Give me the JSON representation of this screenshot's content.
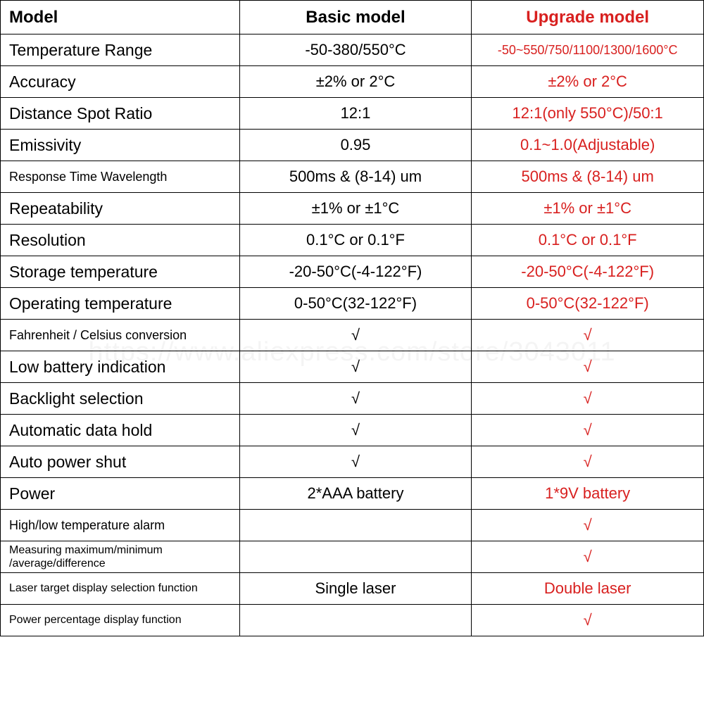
{
  "colors": {
    "border": "#000000",
    "text_black": "#000000",
    "text_red": "#d8201f",
    "background": "#ffffff"
  },
  "table": {
    "col_widths": [
      "34%",
      "33%",
      "33%"
    ],
    "header": {
      "model": "Model",
      "basic": "Basic model",
      "upgrade": "Upgrade model"
    },
    "rows": [
      {
        "label": "Temperature Range",
        "basic": "-50-380/550°C",
        "upgrade": "-50~550/750/1100/1300/1600°C",
        "label_size": "normal",
        "upgrade_size": "small"
      },
      {
        "label": "Accuracy",
        "basic": "±2% or 2°C",
        "upgrade": "±2% or  2°C",
        "label_size": "normal"
      },
      {
        "label": "Distance Spot Ratio",
        "basic": "12:1",
        "upgrade": "12:1(only 550°C)/50:1",
        "label_size": "normal"
      },
      {
        "label": "Emissivity",
        "basic": "0.95",
        "upgrade": "0.1~1.0(Adjustable)",
        "label_size": "normal"
      },
      {
        "label": "Response Time Wavelength",
        "basic": "500ms & (8-14) um",
        "upgrade": "500ms & (8-14) um",
        "label_size": "small"
      },
      {
        "label": "Repeatability",
        "basic": "±1% or ±1°C",
        "upgrade": "±1% or ±1°C",
        "label_size": "normal"
      },
      {
        "label": "Resolution",
        "basic": "0.1°C or 0.1°F",
        "upgrade": "0.1°C or 0.1°F",
        "label_size": "normal"
      },
      {
        "label": "Storage temperature",
        "basic": "-20-50°C(-4-122°F)",
        "upgrade": "-20-50°C(-4-122°F)",
        "label_size": "normal"
      },
      {
        "label": "Operating temperature",
        "basic": "0-50°C(32-122°F)",
        "upgrade": "0-50°C(32-122°F)",
        "label_size": "normal"
      },
      {
        "label": "Fahrenheit / Celsius conversion",
        "basic": "√",
        "upgrade": "√",
        "label_size": "small",
        "check": true
      },
      {
        "label": "Low battery indication",
        "basic": "√",
        "upgrade": "√",
        "label_size": "normal",
        "check": true
      },
      {
        "label": "Backlight selection",
        "basic": "√",
        "upgrade": "√",
        "label_size": "normal",
        "check": true
      },
      {
        "label": "Automatic data hold",
        "basic": "√",
        "upgrade": "√",
        "label_size": "normal",
        "check": true
      },
      {
        "label": "Auto power shut",
        "basic": "√",
        "upgrade": "√",
        "label_size": "normal",
        "check": true
      },
      {
        "label": "Power",
        "basic": "2*AAA battery",
        "upgrade": "1*9V battery",
        "label_size": "normal"
      },
      {
        "label": "High/low temperature alarm",
        "basic": "",
        "upgrade": "√",
        "label_size": "small",
        "check": true
      },
      {
        "label": "Measuring maximum/minimum\n/average/difference",
        "basic": "",
        "upgrade": "√",
        "label_size": "xsmall",
        "check": true
      },
      {
        "label": "Laser target display selection function",
        "basic": "Single laser",
        "upgrade": "Double laser",
        "label_size": "xsmall"
      },
      {
        "label": "Power percentage display function",
        "basic": "",
        "upgrade": "√",
        "label_size": "xsmall",
        "check": true
      }
    ]
  },
  "watermark": "https://www.aliexpress.com/store/3043011"
}
